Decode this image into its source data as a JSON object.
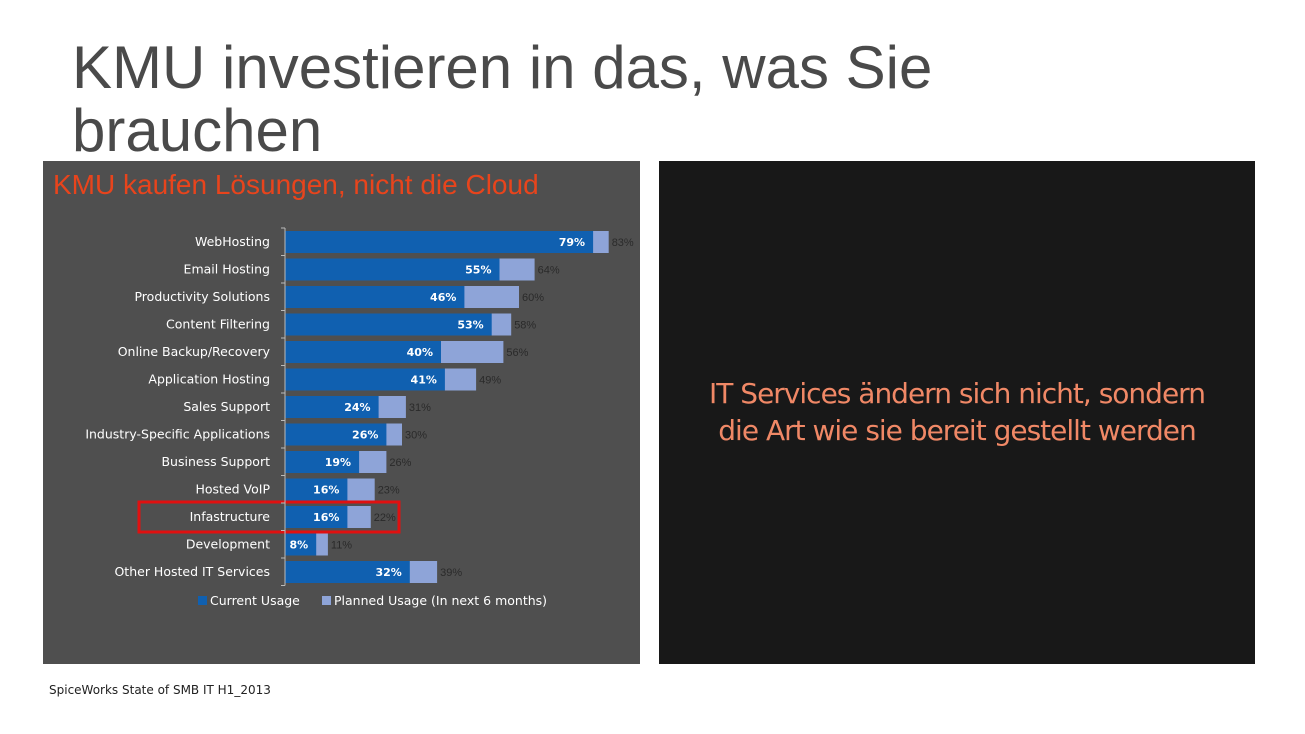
{
  "slide": {
    "title": "KMU investieren in das, was Sie\nbrauchen",
    "left_heading": "KMU kaufen Lösungen, nicht die Cloud",
    "right_text_lines": [
      "IT Services ändern sich nicht, sondern",
      "die Art wie sie bereit gestellt werden"
    ],
    "source": "SpiceWorks State of SMB IT H1_2013"
  },
  "colors": {
    "current": "#1060b0",
    "planned": "#8ea4d8",
    "highlight": "#e01010",
    "heading": "#e8441c",
    "right_text": "#f08866"
  },
  "chart_data": {
    "type": "bar",
    "orientation": "horizontal",
    "stacked": "overlay",
    "categories": [
      "WebHosting",
      "Email Hosting",
      "Productivity Solutions",
      "Content Filtering",
      "Online Backup/Recovery",
      "Application Hosting",
      "Sales Support",
      "Industry-Specific Applications",
      "Business Support",
      "Hosted VoIP",
      "Infastructure",
      "Development",
      "Other Hosted IT Services"
    ],
    "series": [
      {
        "name": "Current Usage",
        "values": [
          79,
          55,
          46,
          53,
          40,
          41,
          24,
          26,
          19,
          16,
          16,
          8,
          32
        ]
      },
      {
        "name": "Planned Usage (In next 6 months)",
        "values": [
          83,
          64,
          60,
          58,
          56,
          49,
          31,
          30,
          26,
          23,
          22,
          11,
          39
        ]
      }
    ],
    "value_format": "percent",
    "xlim": [
      0,
      100
    ],
    "legend": "bottom",
    "grid": false,
    "highlighted_category": "Infastructure"
  }
}
